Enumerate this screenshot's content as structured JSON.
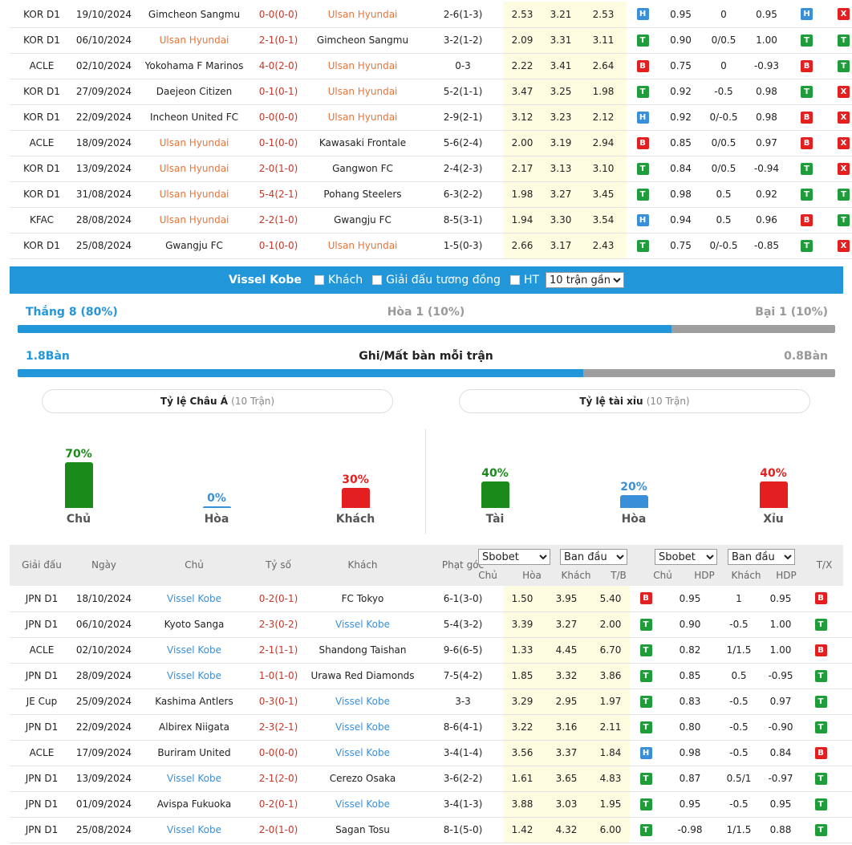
{
  "top_matches": [
    {
      "league": "KOR D1",
      "date": "19/10/2024",
      "home": "Gimcheon Sangmu",
      "score": "0-0(0-0)",
      "away": "Ulsan Hyundai",
      "hl": "away",
      "corner": "2-6(1-3)",
      "o1": "2.53",
      "o2": "3.21",
      "o3": "2.53",
      "r1": "H",
      "h1": "0.95",
      "hd": "0",
      "h2": "0.95",
      "r2": "H",
      "r3": "X"
    },
    {
      "league": "KOR D1",
      "date": "06/10/2024",
      "home": "Ulsan Hyundai",
      "score": "2-1(0-1)",
      "away": "Gimcheon Sangmu",
      "hl": "home",
      "corner": "3-2(1-2)",
      "o1": "2.09",
      "o2": "3.31",
      "o3": "3.11",
      "r1": "T",
      "h1": "0.90",
      "hd": "0/0.5",
      "h2": "1.00",
      "r2": "T",
      "r3": "T"
    },
    {
      "league": "ACLE",
      "date": "02/10/2024",
      "home": "Yokohama F Marinos",
      "score": "4-0(2-0)",
      "away": "Ulsan Hyundai",
      "hl": "away",
      "corner": "0-3",
      "o1": "2.22",
      "o2": "3.41",
      "o3": "2.64",
      "r1": "B",
      "h1": "0.75",
      "hd": "0",
      "h2": "-0.93",
      "r2": "B",
      "r3": "T"
    },
    {
      "league": "KOR D1",
      "date": "27/09/2024",
      "home": "Daejeon Citizen",
      "score": "0-1(0-1)",
      "away": "Ulsan Hyundai",
      "hl": "away",
      "corner": "5-2(1-1)",
      "o1": "3.47",
      "o2": "3.25",
      "o3": "1.98",
      "r1": "T",
      "h1": "0.92",
      "hd": "-0.5",
      "h2": "0.98",
      "r2": "T",
      "r3": "X"
    },
    {
      "league": "KOR D1",
      "date": "22/09/2024",
      "home": "Incheon United FC",
      "score": "0-0(0-0)",
      "away": "Ulsan Hyundai",
      "hl": "away",
      "corner": "2-9(2-1)",
      "o1": "3.12",
      "o2": "3.23",
      "o3": "2.12",
      "r1": "H",
      "h1": "0.92",
      "hd": "0/-0.5",
      "h2": "0.98",
      "r2": "B",
      "r3": "X"
    },
    {
      "league": "ACLE",
      "date": "18/09/2024",
      "home": "Ulsan Hyundai",
      "score": "0-1(0-0)",
      "away": "Kawasaki Frontale",
      "hl": "home",
      "corner": "5-6(2-4)",
      "o1": "2.00",
      "o2": "3.19",
      "o3": "2.94",
      "r1": "B",
      "h1": "0.85",
      "hd": "0/0.5",
      "h2": "0.97",
      "r2": "B",
      "r3": "X"
    },
    {
      "league": "KOR D1",
      "date": "13/09/2024",
      "home": "Ulsan Hyundai",
      "score": "2-0(1-0)",
      "away": "Gangwon FC",
      "hl": "home",
      "corner": "2-4(2-3)",
      "o1": "2.17",
      "o2": "3.13",
      "o3": "3.10",
      "r1": "T",
      "h1": "0.84",
      "hd": "0/0.5",
      "h2": "-0.94",
      "r2": "T",
      "r3": "X"
    },
    {
      "league": "KOR D1",
      "date": "31/08/2024",
      "home": "Ulsan Hyundai",
      "score": "5-4(2-1)",
      "away": "Pohang Steelers",
      "hl": "home",
      "corner": "6-3(2-2)",
      "o1": "1.98",
      "o2": "3.27",
      "o3": "3.45",
      "r1": "T",
      "h1": "0.98",
      "hd": "0.5",
      "h2": "0.92",
      "r2": "T",
      "r3": "T"
    },
    {
      "league": "KFAC",
      "date": "28/08/2024",
      "home": "Ulsan Hyundai",
      "score": "2-2(1-0)",
      "away": "Gwangju FC",
      "hl": "home",
      "corner": "8-5(3-1)",
      "o1": "1.94",
      "o2": "3.30",
      "o3": "3.54",
      "r1": "H",
      "h1": "0.94",
      "hd": "0.5",
      "h2": "0.96",
      "r2": "B",
      "r3": "T"
    },
    {
      "league": "KOR D1",
      "date": "25/08/2024",
      "home": "Gwangju FC",
      "score": "0-1(0-0)",
      "away": "Ulsan Hyundai",
      "hl": "away",
      "corner": "1-5(0-3)",
      "o1": "2.66",
      "o2": "3.17",
      "o3": "2.43",
      "r1": "T",
      "h1": "0.75",
      "hd": "0/-0.5",
      "h2": "-0.85",
      "r2": "T",
      "r3": "X"
    }
  ],
  "section": {
    "team": "Vissel Kobe",
    "opt_away": "Khách",
    "opt_same_league": "Giải đấu tương đồng",
    "opt_ht": "HT",
    "count_select": "10 trận gần"
  },
  "summary": {
    "win": "Thắng 8 (80%)",
    "draw": "Hòa 1 (10%)",
    "loss": "Bại 1 (10%)",
    "win_fraction": 0.8,
    "goals_for": "1.8Bàn",
    "goals_label": "Ghi/Mất bàn mỗi trận",
    "goals_against": "0.8Bàn",
    "goals_fraction": 0.692
  },
  "asian": {
    "title": "Tỷ lệ Châu Á",
    "sub": "(10 Trận)",
    "items": [
      {
        "pct": "70%",
        "label": "Chủ",
        "value": 70,
        "color": "#1a8a1a"
      },
      {
        "pct": "0%",
        "label": "Hòa",
        "value": 0,
        "color": "#3a8fd9"
      },
      {
        "pct": "30%",
        "label": "Khách",
        "value": 30,
        "color": "#e41f1f"
      }
    ]
  },
  "ou": {
    "title": "Tỷ lệ tài xỉu",
    "sub": "(10 Trận)",
    "items": [
      {
        "pct": "40%",
        "label": "Tài",
        "value": 40,
        "color": "#1a8a1a"
      },
      {
        "pct": "20%",
        "label": "Hòa",
        "value": 20,
        "color": "#3a8fd9"
      },
      {
        "pct": "40%",
        "label": "Xỉu",
        "value": 40,
        "color": "#e41f1f"
      }
    ]
  },
  "header": {
    "league": "Giải đấu",
    "date": "Ngày",
    "home": "Chủ",
    "score": "Tỷ số",
    "away": "Khách",
    "corner": "Phạt góc",
    "sel1": "Sbobet",
    "sel2": "Ban đầu",
    "sel3": "Sbobet",
    "sel4": "Ban đầu",
    "s_chu": "Chủ",
    "s_hoa": "Hòa",
    "s_khach": "Khách",
    "s_tb": "T/B",
    "s_chu2": "Chủ",
    "s_hdp": "HDP",
    "s_khach2": "Khách",
    "s_hdp2": "HDP",
    "tx": "T/X"
  },
  "bottom_matches": [
    {
      "league": "JPN D1",
      "date": "18/10/2024",
      "home": "Vissel Kobe",
      "score": "0-2(0-1)",
      "away": "FC Tokyo",
      "hl": "home",
      "corner": "6-1(3-0)",
      "o1": "1.50",
      "o2": "3.95",
      "o3": "5.40",
      "r1": "B",
      "h1": "0.95",
      "hd": "1",
      "h2": "0.95",
      "r2": "B",
      "r3": "X"
    },
    {
      "league": "JPN D1",
      "date": "06/10/2024",
      "home": "Kyoto Sanga",
      "score": "2-3(0-2)",
      "away": "Vissel Kobe",
      "hl": "away",
      "corner": "5-4(3-2)",
      "o1": "3.39",
      "o2": "3.27",
      "o3": "2.00",
      "r1": "T",
      "h1": "0.90",
      "hd": "-0.5",
      "h2": "1.00",
      "r2": "T",
      "r3": "T"
    },
    {
      "league": "ACLE",
      "date": "02/10/2024",
      "home": "Vissel Kobe",
      "score": "2-1(1-1)",
      "away": "Shandong Taishan",
      "hl": "home",
      "corner": "9-6(6-5)",
      "o1": "1.33",
      "o2": "4.45",
      "o3": "6.70",
      "r1": "T",
      "h1": "0.82",
      "hd": "1/1.5",
      "h2": "1.00",
      "r2": "B",
      "r3": "H"
    },
    {
      "league": "JPN D1",
      "date": "28/09/2024",
      "home": "Vissel Kobe",
      "score": "1-0(1-0)",
      "away": "Urawa Red Diamonds",
      "hl": "home",
      "corner": "7-5(4-2)",
      "o1": "1.85",
      "o2": "3.32",
      "o3": "3.86",
      "r1": "T",
      "h1": "0.85",
      "hd": "0.5",
      "h2": "-0.95",
      "r2": "T",
      "r3": "X"
    },
    {
      "league": "JE Cup",
      "date": "25/09/2024",
      "home": "Kashima Antlers",
      "score": "0-3(0-1)",
      "away": "Vissel Kobe",
      "hl": "away",
      "corner": "3-3",
      "o1": "3.29",
      "o2": "2.95",
      "o3": "1.97",
      "r1": "T",
      "h1": "0.83",
      "hd": "-0.5",
      "h2": "0.97",
      "r2": "T",
      "r3": "T"
    },
    {
      "league": "JPN D1",
      "date": "22/09/2024",
      "home": "Albirex Niigata",
      "score": "2-3(2-1)",
      "away": "Vissel Kobe",
      "hl": "away",
      "corner": "8-6(4-1)",
      "o1": "3.22",
      "o2": "3.16",
      "o3": "2.11",
      "r1": "T",
      "h1": "0.80",
      "hd": "-0.5",
      "h2": "-0.90",
      "r2": "T",
      "r3": "T"
    },
    {
      "league": "ACLE",
      "date": "17/09/2024",
      "home": "Buriram United",
      "score": "0-0(0-0)",
      "away": "Vissel Kobe",
      "hl": "away",
      "corner": "3-4(1-4)",
      "o1": "3.56",
      "o2": "3.37",
      "o3": "1.84",
      "r1": "H",
      "h1": "0.98",
      "hd": "-0.5",
      "h2": "0.84",
      "r2": "B",
      "r3": "X"
    },
    {
      "league": "JPN D1",
      "date": "13/09/2024",
      "home": "Vissel Kobe",
      "score": "2-1(2-0)",
      "away": "Cerezo Osaka",
      "hl": "home",
      "corner": "3-6(2-2)",
      "o1": "1.61",
      "o2": "3.65",
      "o3": "4.83",
      "r1": "T",
      "h1": "0.87",
      "hd": "0.5/1",
      "h2": "-0.97",
      "r2": "T",
      "r3": "T"
    },
    {
      "league": "JPN D1",
      "date": "01/09/2024",
      "home": "Avispa Fukuoka",
      "score": "0-2(0-1)",
      "away": "Vissel Kobe",
      "hl": "away",
      "corner": "3-4(1-3)",
      "o1": "3.88",
      "o2": "3.03",
      "o3": "1.95",
      "r1": "T",
      "h1": "0.95",
      "hd": "-0.5",
      "h2": "0.95",
      "r2": "T",
      "r3": "H"
    },
    {
      "league": "JPN D1",
      "date": "25/08/2024",
      "home": "Vissel Kobe",
      "score": "2-0(1-0)",
      "away": "Sagan Tosu",
      "hl": "home",
      "corner": "8-1(5-0)",
      "o1": "1.42",
      "o2": "4.32",
      "o3": "6.00",
      "r1": "T",
      "h1": "-0.98",
      "hd": "1/1.5",
      "h2": "0.88",
      "r2": "T",
      "r3": "X"
    }
  ]
}
